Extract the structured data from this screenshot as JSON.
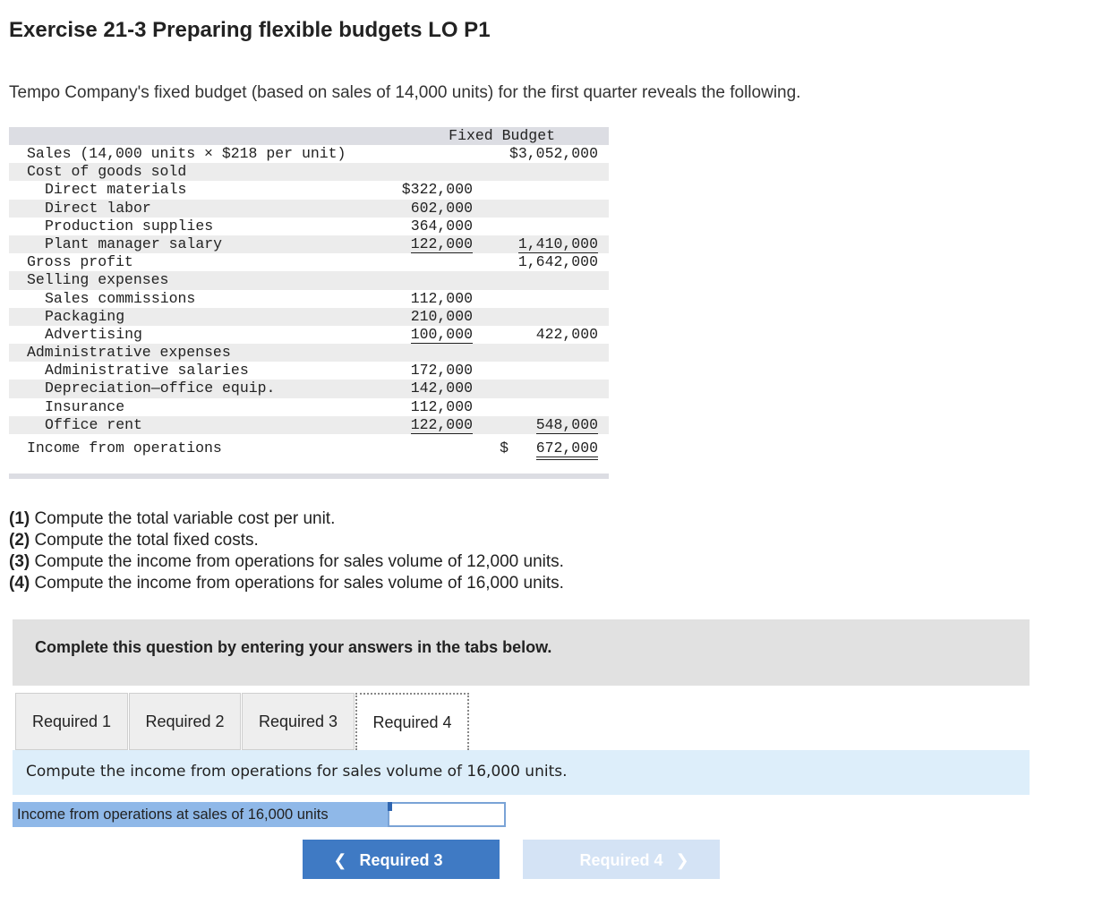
{
  "title": "Exercise 21-3 Preparing flexible budgets LO P1",
  "intro": "Tempo Company's fixed budget (based on sales of 14,000 units) for the first quarter reveals the following.",
  "budget": {
    "header": "Fixed Budget",
    "rows": [
      {
        "label": "Sales (14,000 units × $218 per unit)",
        "indent": 0,
        "c1": "",
        "c2": "$3,052,000",
        "shade": false
      },
      {
        "label": "Cost of goods sold",
        "indent": 0,
        "c1": "",
        "c2": "",
        "shade": true
      },
      {
        "label": "Direct materials",
        "indent": 1,
        "c1": "$322,000",
        "c2": "",
        "shade": false
      },
      {
        "label": "Direct labor",
        "indent": 1,
        "c1": "602,000",
        "c2": "",
        "shade": true
      },
      {
        "label": "Production supplies",
        "indent": 1,
        "c1": "364,000",
        "c2": "",
        "shade": false
      },
      {
        "label": "Plant manager salary",
        "indent": 1,
        "c1": "122,000",
        "c2": "1,410,000",
        "shade": true,
        "c1_underline": true,
        "c2_underline": true
      },
      {
        "label": "Gross profit",
        "indent": 0,
        "c1": "",
        "c2": "1,642,000",
        "shade": false
      },
      {
        "label": "Selling expenses",
        "indent": 0,
        "c1": "",
        "c2": "",
        "shade": true
      },
      {
        "label": "Sales commissions",
        "indent": 1,
        "c1": "112,000",
        "c2": "",
        "shade": false
      },
      {
        "label": "Packaging",
        "indent": 1,
        "c1": "210,000",
        "c2": "",
        "shade": true
      },
      {
        "label": "Advertising",
        "indent": 1,
        "c1": "100,000",
        "c2": "422,000",
        "shade": false,
        "c1_underline": true
      },
      {
        "label": "Administrative expenses",
        "indent": 0,
        "c1": "",
        "c2": "",
        "shade": true
      },
      {
        "label": "Administrative salaries",
        "indent": 1,
        "c1": "172,000",
        "c2": "",
        "shade": false
      },
      {
        "label": "Depreciation—office equip.",
        "indent": 1,
        "c1": "142,000",
        "c2": "",
        "shade": true
      },
      {
        "label": "Insurance",
        "indent": 1,
        "c1": "112,000",
        "c2": "",
        "shade": false
      },
      {
        "label": "Office rent",
        "indent": 1,
        "c1": "122,000",
        "c2": "548,000",
        "shade": true,
        "c1_underline": true,
        "c2_underline": true
      }
    ],
    "income": {
      "label": "Income from operations",
      "dollar": "$",
      "value": "672,000"
    }
  },
  "questions": [
    {
      "num": "(1)",
      "text": " Compute the total variable cost per unit."
    },
    {
      "num": "(2)",
      "text": " Compute the total fixed costs."
    },
    {
      "num": "(3)",
      "text": " Compute the income from operations for sales volume of 12,000 units."
    },
    {
      "num": "(4)",
      "text": " Compute the income from operations for sales volume of 16,000 units."
    }
  ],
  "complete_prompt": "Complete this question by entering your answers in the tabs below.",
  "tabs": [
    {
      "label": "Required 1",
      "active": false
    },
    {
      "label": "Required 2",
      "active": false
    },
    {
      "label": "Required 3",
      "active": false
    },
    {
      "label": "Required 4",
      "active": true
    }
  ],
  "instruction": "Compute the income from operations for sales volume of 16,000 units.",
  "answer": {
    "label": "Income from operations at sales of 16,000 units",
    "value": ""
  },
  "nav": {
    "prev_label": "Required 3",
    "next_label": "Required 4"
  },
  "colors": {
    "accent": "#3f7ac4",
    "disabled": "#d4e3f5",
    "instruction_bg": "#ddeefa",
    "label_bg": "#8fb8e8"
  }
}
